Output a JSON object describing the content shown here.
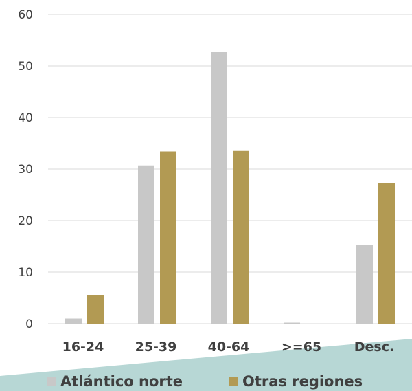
{
  "chart_data": {
    "type": "bar",
    "categories": [
      "16-24",
      "25-39",
      "40-64",
      ">=65",
      "Desc."
    ],
    "series": [
      {
        "name": "Atlántico norte",
        "values": [
          1.0,
          30.7,
          52.7,
          0.2,
          15.2
        ],
        "color": "#c8c8c8"
      },
      {
        "name": "Otras regiones",
        "values": [
          5.5,
          33.4,
          33.5,
          0.0,
          27.3
        ],
        "color": "#b29a53"
      }
    ],
    "ylim": [
      0,
      60
    ],
    "yticks": [
      "0",
      "10",
      "20",
      "30",
      "40",
      "50",
      "60"
    ],
    "grid": true,
    "legend_position": "bottom",
    "title": "",
    "xlabel": "",
    "ylabel": ""
  },
  "colors": {
    "band": "#b7d7d5",
    "grid": "#d9d9d9",
    "text": "#404040"
  }
}
